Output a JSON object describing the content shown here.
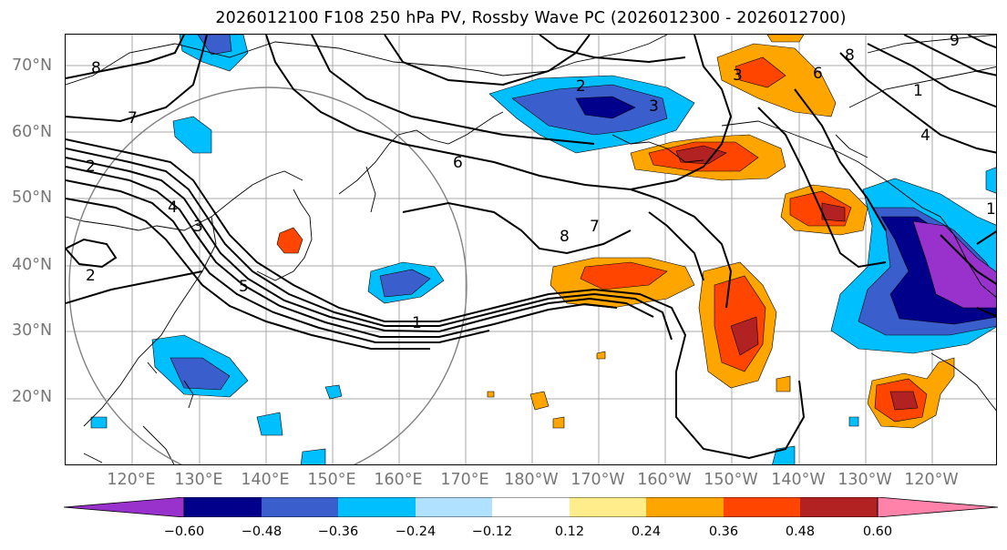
{
  "title": "2026012100 F108 250 hPa PV, Rossby Wave PC (2026012300 - 2026012700)",
  "latitude_labels": [
    "70°N",
    "60°N",
    "50°N",
    "40°N",
    "30°N",
    "20°N"
  ],
  "longitude_labels": [
    "120°E",
    "130°E",
    "140°E",
    "150°E",
    "160°E",
    "170°E",
    "180°W",
    "170°W",
    "160°W",
    "150°W",
    "140°W",
    "130°W",
    "120°W"
  ],
  "colorbar": {
    "ticks": [
      "−0.60",
      "−0.48",
      "−0.36",
      "−0.24",
      "−0.12",
      "0.12",
      "0.24",
      "0.36",
      "0.48",
      "0.60"
    ],
    "colors": [
      "#9932cc",
      "#00008b",
      "#3a5fcd",
      "#00bfff",
      "#b0e2ff",
      "#ffffff",
      "#ffec8b",
      "#ffa500",
      "#ff4500",
      "#b22222",
      "#ff82ab"
    ]
  },
  "contour_labels": [
    "8",
    "7",
    "2",
    "2",
    "3",
    "4",
    "5",
    "1",
    "6",
    "8",
    "7",
    "2",
    "3",
    "3",
    "6",
    "8",
    "9",
    "1",
    "4",
    "1"
  ],
  "colors": {
    "positive_strong": "#b22222",
    "positive_mid": "#ff4500",
    "positive": "#ffa500",
    "negative": "#00bfff",
    "negative_mid": "#3a5fcd",
    "negative_strong": "#00008b",
    "negative_max": "#9932cc"
  }
}
